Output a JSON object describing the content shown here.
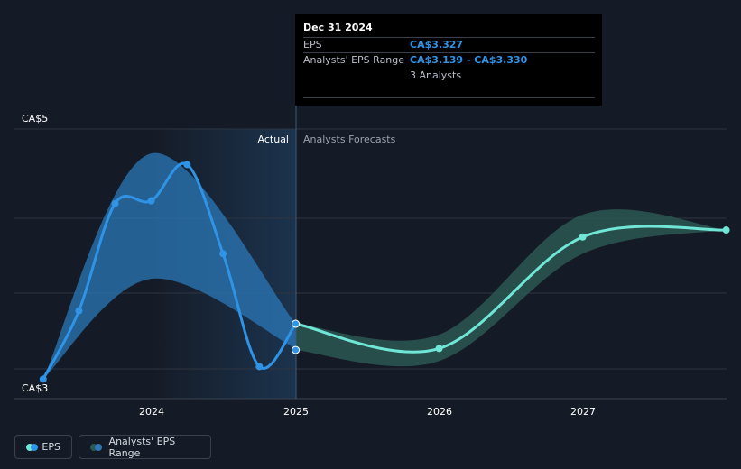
{
  "chart_data": {
    "type": "line",
    "y_unit": "CA$",
    "ylim": [
      3,
      5
    ],
    "y_ticks": [
      {
        "label": "CA$5",
        "value": 5
      },
      {
        "label": "CA$3",
        "value": 3
      }
    ],
    "x_ticks": [
      "2024",
      "2025",
      "2026",
      "2027"
    ],
    "divider_date": "Dec 31 2024",
    "section_labels": {
      "actual": "Actual",
      "forecast": "Analysts Forecasts"
    },
    "series": [
      {
        "name": "EPS",
        "kind": "actual",
        "points": [
          {
            "x": "2023-03-31",
            "y": 2.93
          },
          {
            "x": "2023-06-30",
            "y": 3.42
          },
          {
            "x": "2023-09-30",
            "y": 4.19
          },
          {
            "x": "2023-12-31",
            "y": 4.21
          },
          {
            "x": "2024-03-31",
            "y": 4.47
          },
          {
            "x": "2024-06-30",
            "y": 3.83
          },
          {
            "x": "2024-09-30",
            "y": 3.02
          },
          {
            "x": "2024-12-31",
            "y": 3.327
          },
          {
            "x": "2024-12-31",
            "y": 3.139
          }
        ]
      },
      {
        "name": "EPS",
        "kind": "forecast",
        "points": [
          {
            "x": "2024-12-31",
            "y": 3.327
          },
          {
            "x": "2025-12-31",
            "y": 3.15
          },
          {
            "x": "2026-12-31",
            "y": 3.95
          },
          {
            "x": "2027-12-31",
            "y": 4.0
          }
        ]
      },
      {
        "name": "Analysts' EPS Range",
        "kind": "actual_range",
        "points": [
          {
            "x": "2023-03-31",
            "low": 2.93,
            "high": 2.93
          },
          {
            "x": "2023-12-31",
            "low": 3.65,
            "high": 4.55
          },
          {
            "x": "2024-12-31",
            "low": 3.15,
            "high": 3.33
          }
        ]
      },
      {
        "name": "Analysts' EPS Range",
        "kind": "forecast_range",
        "points": [
          {
            "x": "2024-12-31",
            "low": 3.139,
            "high": 3.33
          },
          {
            "x": "2025-12-31",
            "low": 3.06,
            "high": 3.25
          },
          {
            "x": "2026-12-31",
            "low": 3.83,
            "high": 4.11
          },
          {
            "x": "2027-12-31",
            "low": 4.0,
            "high": 4.0
          }
        ]
      }
    ],
    "legend": {
      "placement": "bottom-left",
      "items": [
        {
          "label": "EPS"
        },
        {
          "label": "Analysts' EPS Range"
        }
      ]
    },
    "colors": {
      "actual_line": "#2f93e6",
      "forecast_line": "#6fe6d6",
      "actual_band": "#2b78b8",
      "forecast_band": "#2c5752",
      "highlight": "#1c3652",
      "grid": "#2d3440",
      "text": "#ffffff",
      "muted_text": "#9aa1ad"
    }
  },
  "tooltip": {
    "date": "Dec 31 2024",
    "rows": [
      {
        "label": "EPS",
        "value": "CA$3.327"
      },
      {
        "label": "Analysts' EPS Range",
        "value": "CA$3.139 - CA$3.330"
      }
    ],
    "analysts": "3 Analysts"
  }
}
